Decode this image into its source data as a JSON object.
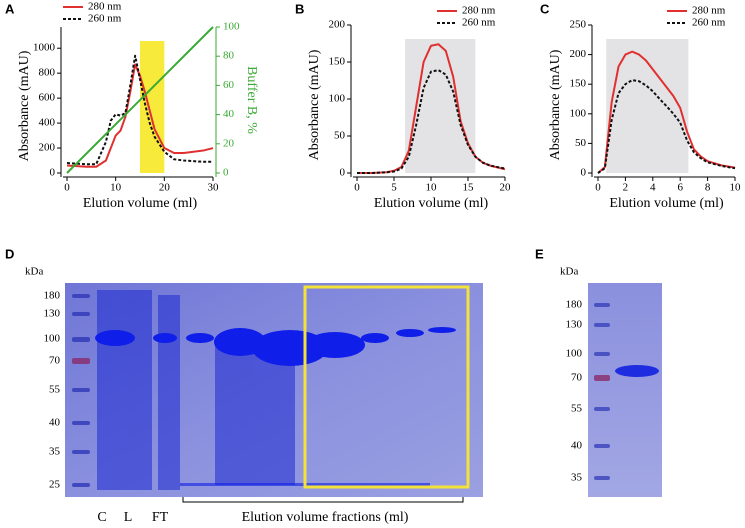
{
  "chart_data": [
    {
      "type": "line",
      "panel": "A",
      "x_label": "Elution volume (ml)",
      "y_label": "Absorbance (mAU)",
      "y2_label": "Buffer B, %",
      "xlim": [
        0,
        30
      ],
      "xticks": [
        0,
        10,
        20,
        30
      ],
      "ylim": [
        0,
        1170
      ],
      "yticks": [
        0,
        200,
        400,
        600,
        800,
        1000
      ],
      "y2lim": [
        0,
        100
      ],
      "y2ticks": [
        0,
        20,
        40,
        60,
        80,
        100
      ],
      "legend": "upper left",
      "highlight": {
        "x": [
          15,
          20
        ],
        "color": "#f7ea3a"
      },
      "x": [
        0,
        2,
        4,
        6,
        8,
        9,
        10,
        11,
        12,
        13,
        14,
        15,
        16,
        17,
        18,
        20,
        22,
        24,
        26,
        28,
        30
      ],
      "series": [
        {
          "name": "280 nm",
          "color": "#e03030",
          "dashed": false,
          "values": [
            60,
            55,
            50,
            50,
            100,
            200,
            300,
            340,
            450,
            650,
            870,
            780,
            650,
            500,
            350,
            200,
            160,
            160,
            170,
            180,
            200
          ]
        },
        {
          "name": "260 nm",
          "color": "#111111",
          "dashed": true,
          "values": [
            80,
            75,
            70,
            70,
            250,
            420,
            470,
            460,
            480,
            700,
            940,
            750,
            560,
            400,
            290,
            170,
            110,
            100,
            95,
            90,
            90
          ]
        },
        {
          "color": "#3aaa35",
          "dashed": false,
          "axis": "y2",
          "x": [
            0,
            30
          ],
          "values": [
            0,
            100
          ]
        }
      ]
    },
    {
      "type": "line",
      "panel": "B",
      "x_label": "Elution volume (ml)",
      "y_label": "Absorbance (mAU)",
      "xlim": [
        0,
        20
      ],
      "xticks": [
        0,
        5,
        10,
        15,
        20
      ],
      "ylim": [
        0,
        200
      ],
      "yticks": [
        0,
        50,
        100,
        150,
        200
      ],
      "legend": "upper right",
      "highlight": {
        "x": [
          6.5,
          16
        ],
        "color": "#e3e3e5"
      },
      "x": [
        0,
        2,
        4,
        5,
        6,
        7,
        8,
        9,
        10,
        11,
        12,
        13,
        14,
        15,
        16,
        17,
        18,
        20
      ],
      "series": [
        {
          "name": "280 nm",
          "color": "#e03030",
          "dashed": false,
          "values": [
            0,
            0,
            1,
            3,
            8,
            30,
            90,
            150,
            172,
            174,
            165,
            130,
            70,
            40,
            22,
            14,
            10,
            5
          ]
        },
        {
          "name": "260 nm",
          "color": "#111111",
          "dashed": true,
          "values": [
            0,
            0,
            1,
            2,
            6,
            22,
            65,
            115,
            137,
            139,
            133,
            110,
            65,
            38,
            22,
            14,
            10,
            6
          ]
        }
      ]
    },
    {
      "type": "line",
      "panel": "C",
      "x_label": "Elution volume (ml)",
      "y_label": "Absorbance (mAU)",
      "xlim": [
        0,
        10
      ],
      "xticks": [
        0,
        2,
        4,
        6,
        8,
        10
      ],
      "ylim": [
        0,
        250
      ],
      "yticks": [
        0,
        50,
        100,
        150,
        200,
        250
      ],
      "legend": "upper right",
      "highlight": {
        "x": [
          0.6,
          6.6
        ],
        "color": "#e3e3e5"
      },
      "x": [
        0,
        0.5,
        1,
        1.5,
        2,
        2.5,
        3,
        3.5,
        4,
        4.5,
        5,
        5.5,
        6,
        6.5,
        7,
        7.5,
        8,
        9,
        10
      ],
      "series": [
        {
          "name": "280 nm",
          "color": "#e03030",
          "dashed": false,
          "values": [
            0,
            10,
            120,
            180,
            200,
            205,
            200,
            190,
            175,
            160,
            145,
            130,
            110,
            70,
            40,
            28,
            20,
            13,
            9
          ]
        },
        {
          "name": "260 nm",
          "color": "#111111",
          "dashed": true,
          "values": [
            0,
            8,
            90,
            135,
            150,
            157,
            155,
            148,
            138,
            125,
            113,
            100,
            85,
            55,
            35,
            25,
            18,
            12,
            8
          ]
        }
      ]
    }
  ],
  "gels": [
    {
      "panel": "D",
      "unit": "kDa",
      "markers": [
        "180",
        "130",
        "100",
        "70",
        "55",
        "40",
        "35",
        "25"
      ],
      "lanes": [
        "C",
        "L",
        "FT",
        "Elution volume fractions (ml)"
      ]
    },
    {
      "panel": "E",
      "unit": "kDa",
      "markers": [
        "180",
        "130",
        "100",
        "70",
        "55",
        "40",
        "35"
      ]
    }
  ]
}
